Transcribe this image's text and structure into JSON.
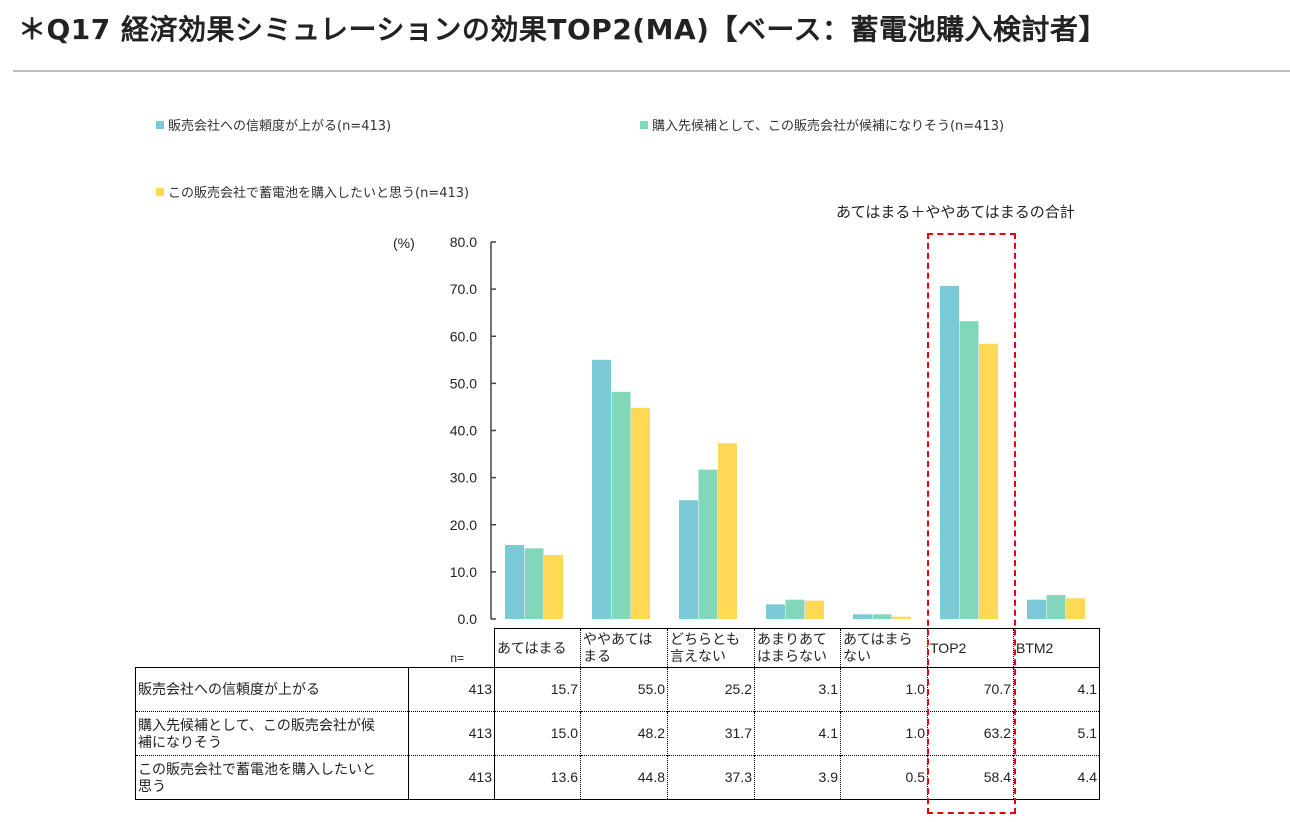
{
  "header": {
    "title": "＊Q17 経済効果シミュレーションの効果TOP2(MA)【ベース：蓄電池購入検討者】"
  },
  "legend": [
    {
      "label": "販売会社への信頼度が上がる(n=413)",
      "color": "#79c9d6"
    },
    {
      "label": "購入先候補として、この販売会社が候補になりそう(n=413)",
      "color": "#80d7ba"
    },
    {
      "label": "この販売会社で蓄電池を購入したいと思う(n=413)",
      "color": "#ffd855"
    }
  ],
  "annotation": "あてはまる＋ややあてはまるの合計",
  "chart_data": {
    "type": "bar",
    "title": "＊Q17 経済効果シミュレーションの効果TOP2(MA)【ベース：蓄電池購入検討者】",
    "ylabel": "(%)",
    "xlabel": "",
    "ylim": [
      0,
      80
    ],
    "yticks": [
      "0.0",
      "10.0",
      "20.0",
      "30.0",
      "40.0",
      "50.0",
      "60.0",
      "70.0",
      "80.0"
    ],
    "grid": false,
    "legend_position": "top",
    "categories": [
      "あてはまる",
      "ややあてはまる",
      "どちらとも言えない",
      "あまりあてはまらない",
      "あてはまらない",
      "TOP2",
      "BTM2"
    ],
    "series": [
      {
        "name": "販売会社への信頼度が上がる",
        "n": 413,
        "color": "#79c9d6",
        "values": [
          15.7,
          55.0,
          25.2,
          3.1,
          1.0,
          70.7,
          4.1
        ]
      },
      {
        "name": "購入先候補として、この販売会社が候補になりそう",
        "n": 413,
        "color": "#80d7ba",
        "values": [
          15.0,
          48.2,
          31.7,
          4.1,
          1.0,
          63.2,
          5.1
        ]
      },
      {
        "name": "この販売会社で蓄電池を購入したいと思う",
        "n": 413,
        "color": "#ffd855",
        "values": [
          13.6,
          44.8,
          37.3,
          3.9,
          0.5,
          58.4,
          4.4
        ]
      }
    ],
    "highlight": {
      "category": "TOP2",
      "note": "あてはまる＋ややあてはまるの合計",
      "color": "#e8000b"
    }
  },
  "table": {
    "n_label": "n=",
    "headers": [
      [
        "あてはまる",
        ""
      ],
      [
        "ややあては",
        "まる"
      ],
      [
        "どちらとも",
        "言えない"
      ],
      [
        "あまりあて",
        "はまらない"
      ],
      [
        "あてはまら",
        "ない"
      ],
      [
        "TOP2",
        ""
      ],
      [
        "BTM2",
        ""
      ]
    ],
    "rows": [
      {
        "label": [
          "販売会社への信頼度が上がる",
          ""
        ],
        "n": "413",
        "cells": [
          "15.7",
          "55.0",
          "25.2",
          "3.1",
          "1.0",
          "70.7",
          "4.1"
        ]
      },
      {
        "label": [
          "購入先候補として、この販売会社が候",
          "補になりそう"
        ],
        "n": "413",
        "cells": [
          "15.0",
          "48.2",
          "31.7",
          "4.1",
          "1.0",
          "63.2",
          "5.1"
        ]
      },
      {
        "label": [
          "この販売会社で蓄電池を購入したいと",
          "思う"
        ],
        "n": "413",
        "cells": [
          "13.6",
          "44.8",
          "37.3",
          "3.9",
          "0.5",
          "58.4",
          "4.4"
        ]
      }
    ]
  }
}
